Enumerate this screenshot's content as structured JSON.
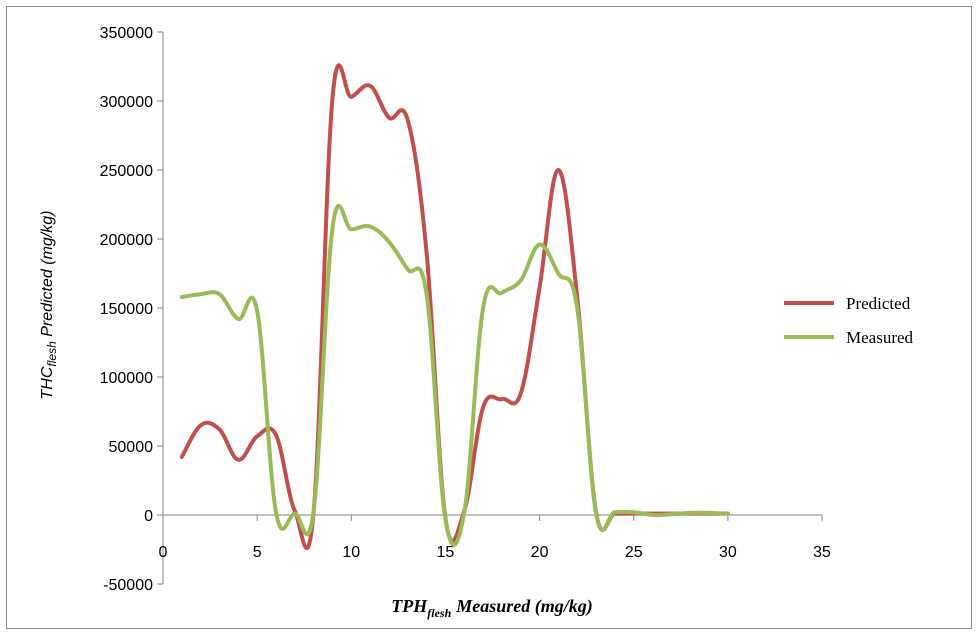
{
  "chart_data": {
    "type": "line",
    "title": "",
    "xlabel_main": "TPH",
    "xlabel_sub": "flesh",
    "xlabel_rest": "Measured (mg/kg)",
    "ylabel_main": "THC",
    "ylabel_sub": "flesh",
    "ylabel_rest": " Predicted (mg/kg)",
    "xlim": [
      0,
      35
    ],
    "ylim": [
      -50000,
      350000
    ],
    "xticks": [
      0,
      5,
      10,
      15,
      20,
      25,
      30,
      35
    ],
    "yticks": [
      -50000,
      0,
      50000,
      100000,
      150000,
      200000,
      250000,
      300000,
      350000
    ],
    "legend_position": "right",
    "series": [
      {
        "name": "Predicted",
        "color": "#c0504d",
        "x": [
          1,
          2,
          3,
          4,
          5,
          6,
          7,
          8,
          9,
          10,
          11,
          12,
          13,
          14,
          15,
          16,
          17,
          18,
          19,
          20,
          21,
          22,
          23,
          24,
          25,
          26,
          27,
          28,
          29,
          30
        ],
        "y": [
          42000,
          65000,
          62000,
          40000,
          57000,
          58000,
          3000,
          2000,
          302000,
          303000,
          311000,
          288000,
          286000,
          190000,
          -2000,
          3000,
          78000,
          84000,
          88000,
          165000,
          250000,
          158000,
          2000,
          1000,
          1000,
          1000,
          1000,
          1000,
          1000,
          1000
        ]
      },
      {
        "name": "Measured",
        "color": "#9bbb59",
        "x": [
          1,
          2,
          3,
          4,
          5,
          6,
          7,
          8,
          9,
          10,
          11,
          12,
          13,
          14,
          15,
          16,
          17,
          18,
          19,
          20,
          21,
          22,
          23,
          24,
          25,
          26,
          27,
          28,
          29,
          30
        ],
        "y": [
          158000,
          160000,
          160000,
          142000,
          148000,
          2000,
          1000,
          3000,
          208000,
          207000,
          209000,
          198000,
          178000,
          160000,
          -3000,
          2000,
          150000,
          161000,
          170000,
          196000,
          175000,
          150000,
          1000,
          2000,
          2000,
          0,
          500,
          1500,
          1500,
          1000
        ]
      }
    ]
  }
}
